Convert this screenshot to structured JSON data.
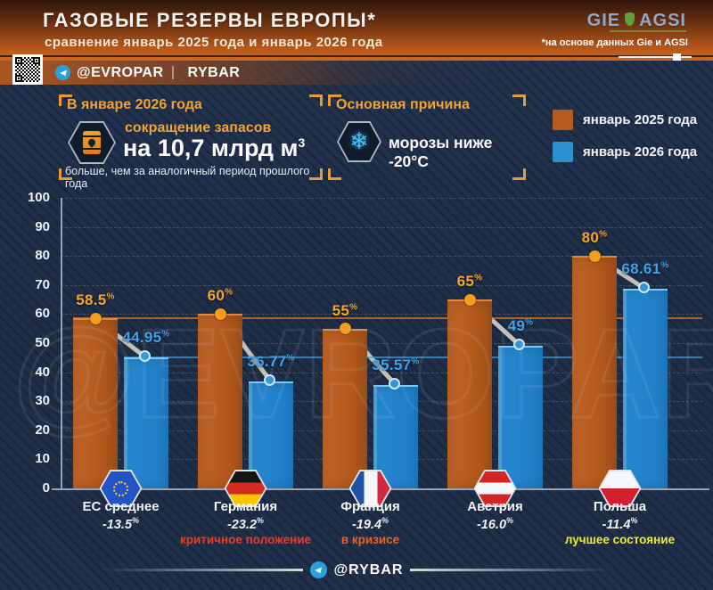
{
  "header": {
    "title": "ГАЗОВЫЕ РЕЗЕРВЫ ЕВРОПЫ*",
    "subtitle": "сравнение январь 2025 года и январь 2026 года",
    "logo": {
      "gie": "GIE",
      "agsi": "AGSI"
    },
    "source_note": "*на основе данных Gie и AGSI",
    "channels": {
      "evropar": "@EVROPAR",
      "rybar": "RYBAR"
    }
  },
  "info_boxes": {
    "reserves": {
      "title": "В январе 2026 года",
      "icon": "oil-barrel-icon",
      "line1": "сокращение запасов",
      "line2": "на 10,7 млрд м",
      "line2_sup": "3",
      "line3": "больше, чем за аналогичный период прошлого года"
    },
    "reason": {
      "title": "Основная причина",
      "icon": "snowflake-icon",
      "text": "морозы ниже -20°C"
    }
  },
  "chart_data": {
    "type": "bar",
    "title": "",
    "categories": [
      "ЕС среднее",
      "Германия",
      "Франция",
      "Австрия",
      "Польша"
    ],
    "series": [
      {
        "name": "январь 2025 года",
        "color": "#b45c20",
        "values": [
          58.5,
          60,
          55,
          65,
          80
        ]
      },
      {
        "name": "январь 2026 года",
        "color": "#2b8fd0",
        "values": [
          44.95,
          36.77,
          35.57,
          49,
          68.61
        ]
      }
    ],
    "value_suffix": "%",
    "ylim": [
      0,
      100
    ],
    "ytick_step": 10,
    "grid": "dashed-horizontal",
    "legend_position": "top-right",
    "reference_lines": [
      {
        "value": 58.5,
        "color": "#e0761a"
      },
      {
        "value": 44.95,
        "color": "#3d9ad8"
      }
    ],
    "categories_meta": [
      {
        "flag": "eu",
        "change": "-13.5",
        "status": "",
        "status_color": ""
      },
      {
        "flag": "germany",
        "change": "-23.2",
        "status": "критичное положение",
        "status_color": "#f03a28"
      },
      {
        "flag": "france",
        "change": "-19.4",
        "status": "в кризисе",
        "status_color": "#f2601e"
      },
      {
        "flag": "austria",
        "change": "-16.0",
        "status": "",
        "status_color": ""
      },
      {
        "flag": "poland",
        "change": "-11.4",
        "status": "лучшее состояние",
        "status_color": "#f2ea2f"
      }
    ]
  },
  "watermark": "@EVROPAR",
  "footer": {
    "handle": "@RYBAR"
  }
}
